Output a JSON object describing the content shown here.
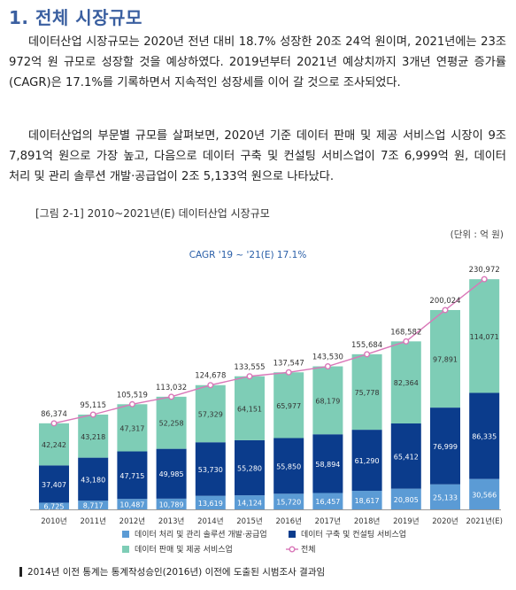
{
  "heading": "1. 전체 시장규모",
  "paragraphs": [
    "데이터산업 시장규모는 2020년 전년 대비 18.7% 성장한 20조 24억 원이며, 2021년에는 23조 972억 원 규모로 성장할 것을 예상하였다. 2019년부터 2021년 예상치까지 3개년 연평균 증가률(CAGR)은 17.1%를 기록하면서 지속적인 성장세를 이어 갈 것으로 조사되었다.",
    "데이터산업의 부문별 규모를 살펴보면, 2020년 기준 데이터 판매 및 제공 서비스업 시장이 9조 7,891억 원으로 가장 높고, 다음으로 데이터 구축 및 컨설팅 서비스업이 7조 6,999억 원, 데이터 처리 및 관리 솔루션 개발·공급업이 2조 5,133억 원으로 나타났다."
  ],
  "figure_caption": "[그림 2-1]  2010~2021년(E)  데이터산업 시장규모",
  "unit": "(단위 : 억 원)",
  "footnote": "2014년 이전 통계는 통계작성승인(2016년) 이전에 도출된 시범조사 결과임",
  "colors": {
    "heading": "#3a5fa0",
    "solution": "#5b9bd5",
    "build": "#0b3c8c",
    "sales": "#7ecdb6",
    "total_line": "#d977b8"
  },
  "chart_data": {
    "type": "bar",
    "stacked": true,
    "title": "",
    "annotation": "CAGR '19 ~ '21(E) 17.1%",
    "xlabel": "",
    "ylabel": "",
    "categories": [
      "2010년",
      "2011년",
      "2012년",
      "2013년",
      "2014년",
      "2015년",
      "2016년",
      "2017년",
      "2018년",
      "2019년",
      "2020년",
      "2021년(E)"
    ],
    "series": [
      {
        "name": "데이터 처리 및 관리 솔루션 개발·공급업",
        "values": [
          6725,
          8717,
          10487,
          10789,
          13619,
          14124,
          15720,
          16457,
          18617,
          20805,
          25133,
          30566
        ],
        "labels": [
          "6,725",
          "8,717",
          "10,487",
          "10,789",
          "13,619",
          "14,124",
          "15,720",
          "16,457",
          "18,617",
          "20,805",
          "25,133",
          "30,566"
        ]
      },
      {
        "name": "데이터 구축 및 컨설팅 서비스업",
        "values": [
          37407,
          43180,
          47715,
          49985,
          53730,
          55280,
          55850,
          58894,
          61290,
          65412,
          76999,
          86335
        ],
        "labels": [
          "37,407",
          "43,180",
          "47,715",
          "49,985",
          "53,730",
          "55,280",
          "55,850",
          "58,894",
          "61,290",
          "65,412",
          "76,999",
          "86,335"
        ]
      },
      {
        "name": "데이터 판매 및 제공 서비스업",
        "values": [
          42242,
          43218,
          47317,
          52258,
          57329,
          64151,
          65977,
          68179,
          75778,
          82364,
          97891,
          114071
        ],
        "labels": [
          "42,242",
          "43,218",
          "47,317",
          "52,258",
          "57,329",
          "64,151",
          "65,977",
          "68,179",
          "75,778",
          "82,364",
          "97,891",
          "114,071"
        ]
      }
    ],
    "total": {
      "name": "전체",
      "values": [
        86374,
        95115,
        105519,
        113032,
        124678,
        133555,
        137547,
        143530,
        155684,
        168582,
        200024,
        230972
      ],
      "labels": [
        "86,374",
        "95,115",
        "105,519",
        "113,032",
        "124,678",
        "133,555",
        "137,547",
        "143,530",
        "155,684",
        "168,582",
        "200,024",
        "230,972"
      ]
    },
    "ylim": [
      0,
      240000
    ],
    "grid": false,
    "legend": "bottom"
  }
}
